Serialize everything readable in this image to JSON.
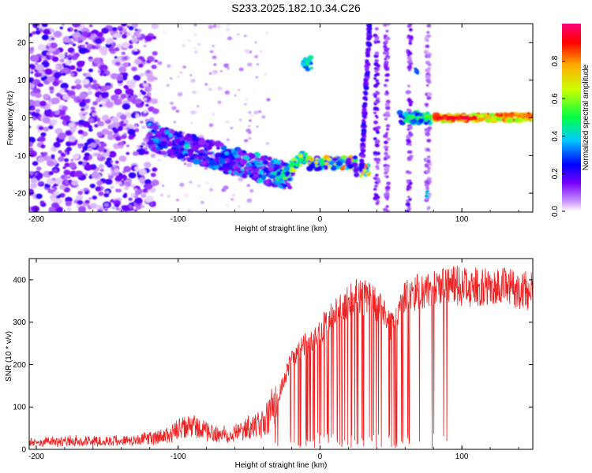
{
  "title": "S233.2025.182.10.34.C26",
  "chart_data": [
    {
      "type": "heatmap",
      "xlabel": "Height of straight line (km)",
      "ylabel": "Frequency (Hz)",
      "xlim": [
        -205,
        150
      ],
      "ylim": [
        -25,
        25
      ],
      "x_ticks": [
        -200,
        -100,
        0,
        100
      ],
      "y_ticks": [
        -20,
        -10,
        0,
        10,
        20
      ],
      "colorbar": {
        "label": "Normalized spectral amplitude",
        "range": [
          0.0,
          1.0
        ],
        "ticks": [
          "0.0",
          "0.2",
          "0.4",
          "0.6",
          "0.8"
        ],
        "colors": [
          "#ffffff",
          "#cc99ff",
          "#7700ff",
          "#0000ff",
          "#00ccff",
          "#00ff44",
          "#ccff00",
          "#ffaa00",
          "#ff0000",
          "#ff0077"
        ]
      },
      "features": [
        {
          "x": [
            -120,
            -20
          ],
          "freq_start": -5,
          "freq_end": -16,
          "amplitude": 0.35
        },
        {
          "x": [
            -15,
            35
          ],
          "freq": -12,
          "amplitude": 0.6
        },
        {
          "x": [
            -12,
            -8
          ],
          "freq": 14,
          "amplitude": 0.4
        },
        {
          "x": [
            55,
            150
          ],
          "freq": 0,
          "amplitude": 0.85
        }
      ]
    },
    {
      "type": "line",
      "xlabel": "Height of straight line (km)",
      "ylabel": "SNR (10 * v/v)",
      "xlim": [
        -205,
        150
      ],
      "ylim": [
        0,
        450
      ],
      "x_ticks": [
        -200,
        -100,
        0,
        100
      ],
      "y_ticks": [
        0,
        100,
        200,
        300,
        400
      ],
      "series": [
        {
          "color": "#ee2222",
          "x": [
            -205,
            -190,
            -170,
            -150,
            -130,
            -110,
            -100,
            -90,
            -80,
            -70,
            -60,
            -50,
            -40,
            -30,
            -25,
            -20,
            -15,
            -10,
            -5,
            0,
            5,
            10,
            15,
            20,
            25,
            30,
            35,
            40,
            45,
            50,
            55,
            60,
            65,
            70,
            80,
            90,
            100,
            110,
            120,
            130,
            140,
            150
          ],
          "values": [
            15,
            18,
            20,
            20,
            22,
            30,
            45,
            55,
            40,
            35,
            40,
            50,
            60,
            120,
            170,
            210,
            230,
            250,
            260,
            280,
            300,
            320,
            340,
            350,
            360,
            360,
            350,
            340,
            320,
            290,
            310,
            360,
            365,
            370,
            380,
            385,
            385,
            380,
            380,
            385,
            375,
            375
          ]
        }
      ]
    }
  ]
}
